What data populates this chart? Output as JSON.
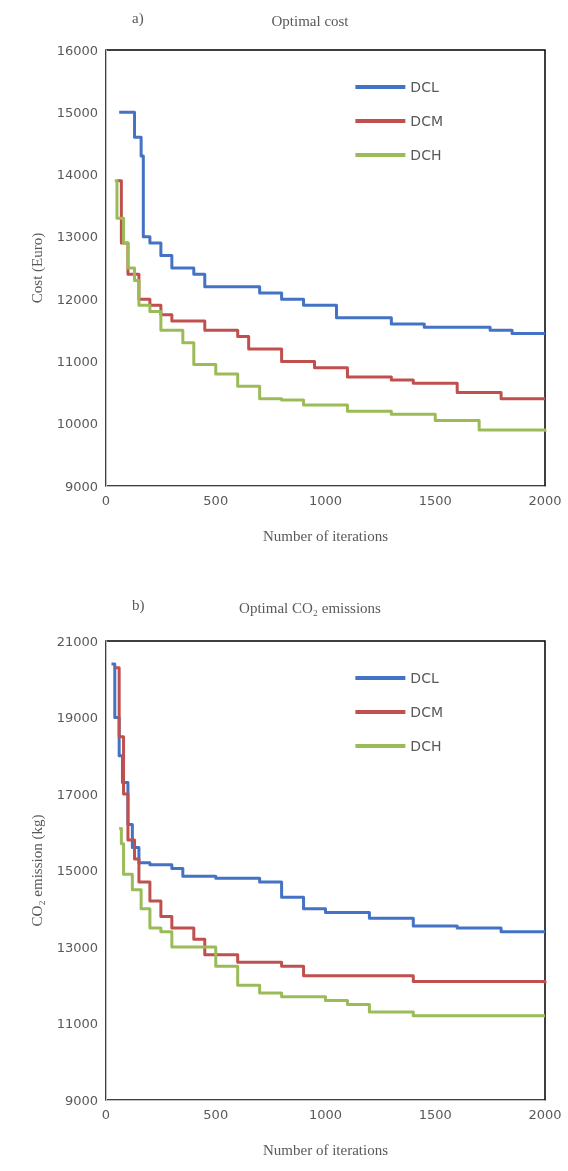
{
  "chart_data": [
    {
      "type": "step",
      "title": "Optimal cost",
      "annotations": [
        "a)"
      ],
      "xlabel": "Number of iterations",
      "ylabel": "Cost (Euro)",
      "xlim": [
        0,
        2000
      ],
      "xticks": [
        0,
        500,
        1000,
        1500,
        2000
      ],
      "ylim": [
        9000,
        16000
      ],
      "yticks": [
        9000,
        10000,
        11000,
        12000,
        13000,
        14000,
        15000,
        16000
      ],
      "grid": false,
      "legend": "top right",
      "line_style": "solid",
      "marker": "none",
      "series": [
        {
          "name": "DCL",
          "color": "#4472c4",
          "x": [
            60,
            130,
            160,
            170,
            200,
            250,
            300,
            400,
            450,
            600,
            700,
            800,
            900,
            1050,
            1300,
            1450,
            1750,
            1850,
            2000
          ],
          "values": [
            15000,
            14600,
            14300,
            13000,
            12900,
            12700,
            12500,
            12400,
            12200,
            12200,
            12100,
            12000,
            11900,
            11700,
            11600,
            11550,
            11500,
            11450,
            11450
          ]
        },
        {
          "name": "DCM",
          "color": "#c0504d",
          "x": [
            50,
            70,
            100,
            150,
            200,
            250,
            300,
            400,
            450,
            600,
            650,
            800,
            950,
            1100,
            1300,
            1400,
            1600,
            1800,
            2000
          ],
          "values": [
            13900,
            12900,
            12400,
            12000,
            11900,
            11750,
            11650,
            11650,
            11500,
            11400,
            11200,
            11000,
            10900,
            10750,
            10700,
            10650,
            10500,
            10400,
            10400
          ]
        },
        {
          "name": "DCH",
          "color": "#9bbb59",
          "x": [
            40,
            50,
            80,
            100,
            130,
            150,
            200,
            250,
            350,
            400,
            500,
            600,
            700,
            800,
            900,
            1100,
            1300,
            1500,
            1700,
            2000
          ],
          "values": [
            13900,
            13300,
            12900,
            12500,
            12300,
            11900,
            11800,
            11500,
            11300,
            10950,
            10800,
            10600,
            10400,
            10380,
            10300,
            10200,
            10150,
            10050,
            9900,
            9870
          ]
        }
      ]
    },
    {
      "type": "step",
      "title": "Optimal CO₂ emissions",
      "annotations": [
        "b)"
      ],
      "xlabel": "Number of iterations",
      "ylabel": "CO₂ emission (kg)",
      "xlim": [
        0,
        2000
      ],
      "xticks": [
        0,
        500,
        1000,
        1500,
        2000
      ],
      "ylim": [
        9000,
        21000
      ],
      "yticks": [
        9000,
        11000,
        13000,
        15000,
        17000,
        19000,
        21000
      ],
      "grid": false,
      "legend": "top right",
      "line_style": "solid",
      "marker": "none",
      "series": [
        {
          "name": "DCL",
          "color": "#4472c4",
          "x": [
            25,
            40,
            60,
            75,
            100,
            120,
            150,
            200,
            300,
            350,
            500,
            700,
            800,
            900,
            1000,
            1200,
            1400,
            1600,
            1800,
            2000
          ],
          "values": [
            20400,
            19000,
            18000,
            17300,
            16200,
            15600,
            15200,
            15150,
            15050,
            14850,
            14800,
            14700,
            14300,
            14000,
            13900,
            13750,
            13550,
            13500,
            13400,
            13400
          ]
        },
        {
          "name": "DCM",
          "color": "#c0504d",
          "x": [
            40,
            60,
            80,
            100,
            130,
            150,
            200,
            250,
            300,
            400,
            450,
            600,
            800,
            900,
            1400,
            2000
          ],
          "values": [
            20300,
            18500,
            17000,
            15800,
            15300,
            14700,
            14200,
            13800,
            13500,
            13200,
            12800,
            12600,
            12500,
            12250,
            12100,
            12050
          ]
        },
        {
          "name": "DCH",
          "color": "#9bbb59",
          "x": [
            60,
            70,
            80,
            120,
            160,
            200,
            250,
            300,
            500,
            600,
            700,
            800,
            1000,
            1100,
            1200,
            1400,
            2000
          ],
          "values": [
            16100,
            15700,
            14900,
            14500,
            14000,
            13500,
            13400,
            13000,
            12500,
            12000,
            11800,
            11700,
            11600,
            11500,
            11300,
            11200,
            11200
          ]
        }
      ]
    }
  ]
}
